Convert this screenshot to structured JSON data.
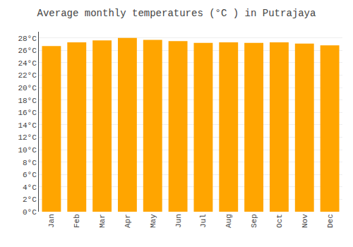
{
  "chart_data": {
    "type": "bar",
    "title": "Average monthly temperatures (°C ) in Putrajaya",
    "categories": [
      "Jan",
      "Feb",
      "Mar",
      "Apr",
      "May",
      "Jun",
      "Jul",
      "Aug",
      "Sep",
      "Oct",
      "Nov",
      "Dec"
    ],
    "values": [
      26.7,
      27.3,
      27.6,
      28.0,
      27.7,
      27.5,
      27.2,
      27.3,
      27.2,
      27.3,
      27.1,
      26.8
    ],
    "color": "#FFA500",
    "ylim": [
      0,
      29
    ],
    "yticks": [
      {
        "value": 0,
        "label": "0°C"
      },
      {
        "value": 2,
        "label": "2°C"
      },
      {
        "value": 4,
        "label": "4°C"
      },
      {
        "value": 6,
        "label": "6°C"
      },
      {
        "value": 8,
        "label": "8°C"
      },
      {
        "value": 10,
        "label": "10°C"
      },
      {
        "value": 12,
        "label": "12°C"
      },
      {
        "value": 14,
        "label": "14°C"
      },
      {
        "value": 16,
        "label": "16°C"
      },
      {
        "value": 18,
        "label": "18°C"
      },
      {
        "value": 20,
        "label": "20°C"
      },
      {
        "value": 22,
        "label": "22°C"
      },
      {
        "value": 24,
        "label": "24°C"
      },
      {
        "value": 26,
        "label": "26°C"
      },
      {
        "value": 28,
        "label": "28°C"
      }
    ],
    "grid": true
  }
}
